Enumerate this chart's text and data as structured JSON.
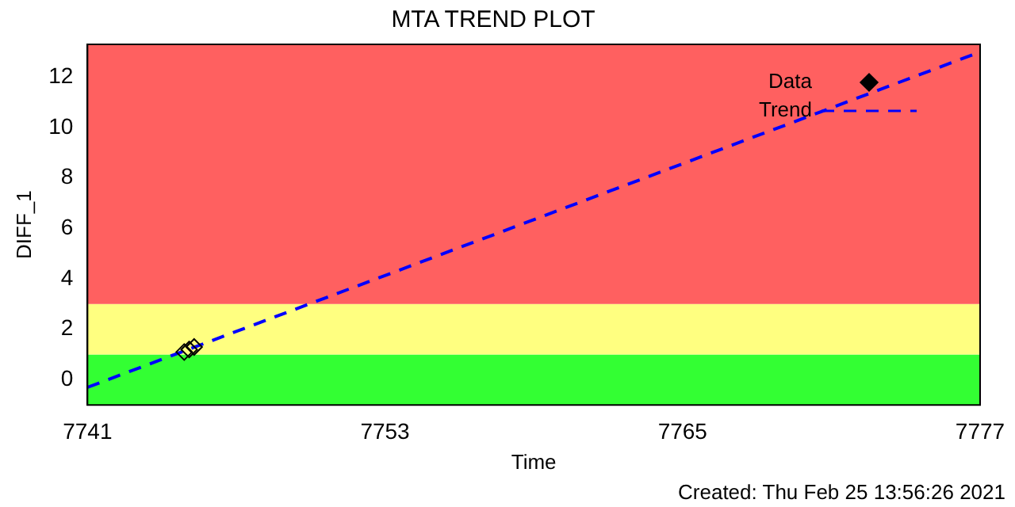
{
  "chart_data": {
    "type": "scatter",
    "title": "MTA TREND PLOT",
    "xlabel": "Time",
    "ylabel": "DIFF_1",
    "xlim": [
      7741,
      7777
    ],
    "xticks": [
      7741,
      7753,
      7765,
      7777
    ],
    "ylim": [
      -1,
      13.3
    ],
    "yticks": [
      0,
      2,
      4,
      6,
      8,
      10,
      12
    ],
    "grid": false,
    "legend": "top right",
    "series": [
      {
        "name": "Data",
        "type": "scatter",
        "color": "#000000",
        "marker": "diamond",
        "x": [
          7744.9,
          7745.1,
          7745.3
        ],
        "values": [
          1.1,
          1.2,
          1.3
        ]
      },
      {
        "name": "Trend",
        "type": "line",
        "color": "#0000ff",
        "line_style": "dashed",
        "marker": "none",
        "x": [
          7741,
          7777
        ],
        "values": [
          -0.3,
          13.0
        ]
      }
    ],
    "bands": [
      {
        "axis": "y",
        "from": -1,
        "to": 1,
        "color": "#33ff33"
      },
      {
        "axis": "y",
        "from": 1,
        "to": 3,
        "color": "#ffff80"
      },
      {
        "axis": "y",
        "from": 3,
        "to": 13.3,
        "color": "#ff6060"
      }
    ],
    "annotations": [
      "Created: Thu Feb 25 13:56:26 2021"
    ]
  }
}
